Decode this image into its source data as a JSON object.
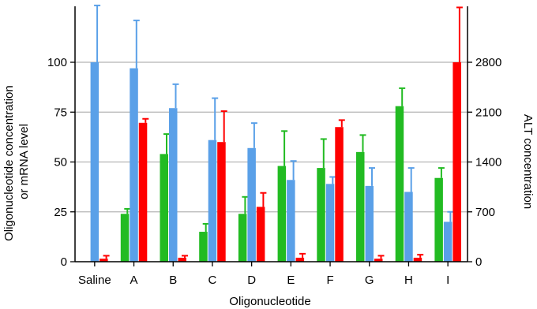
{
  "chart_data": {
    "type": "bar",
    "xlabel": "Oligonucleotide",
    "ylabel_left_line1": "Oligonucleotide concentration",
    "ylabel_left_line2": "or mRNA level",
    "ylabel_right": "ALT concentration",
    "categories": [
      "Saline",
      "A",
      "B",
      "C",
      "D",
      "E",
      "F",
      "G",
      "H",
      "I"
    ],
    "y_left": {
      "ylim": [
        0,
        100
      ],
      "ticks": [
        "0",
        "25",
        "50",
        "75",
        "100"
      ]
    },
    "y_right": {
      "ylim": [
        0,
        2800
      ],
      "ticks": [
        "0",
        "700",
        "1400",
        "2100",
        "2800"
      ]
    },
    "grid": true,
    "series": [
      {
        "key": "oligo",
        "axis": "left",
        "color": "#22bb22",
        "values": [
          null,
          24,
          54,
          15,
          24,
          48,
          47,
          55,
          78,
          42
        ],
        "errors": [
          null,
          2.5,
          10,
          4,
          8.5,
          17.5,
          14.5,
          8.5,
          9,
          5
        ]
      },
      {
        "key": "mrna",
        "axis": "left",
        "color": "#5aa0e8",
        "values": [
          100,
          97,
          77,
          61,
          57,
          41,
          39,
          38,
          35,
          20
        ],
        "errors": [
          28.5,
          24,
          12,
          21,
          12.5,
          9.5,
          3.5,
          9,
          12,
          5
        ]
      },
      {
        "key": "alt",
        "axis": "right",
        "color": "#ff0000",
        "values": [
          42,
          1950,
          56,
          1680,
          770,
          56,
          1890,
          42,
          56,
          2800
        ],
        "errors": [
          42,
          56,
          28,
          434,
          196,
          56,
          98,
          42,
          42,
          770
        ]
      }
    ]
  }
}
